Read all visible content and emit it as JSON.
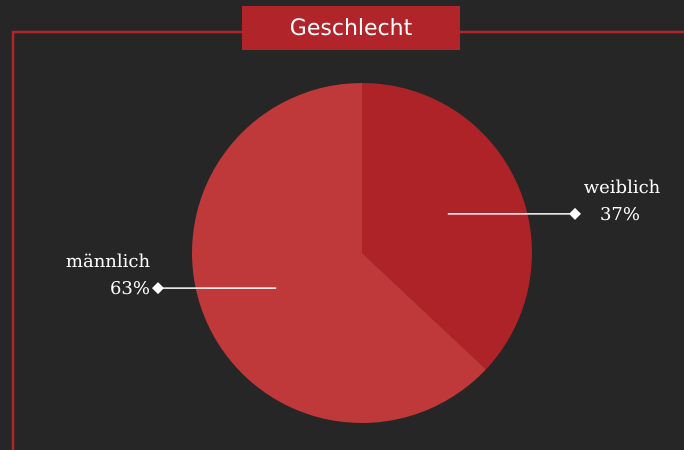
{
  "chart_data": {
    "type": "pie",
    "title": "Geschlecht",
    "categories": [
      "weiblich",
      "männlich"
    ],
    "values": [
      37,
      63
    ],
    "value_labels": [
      "37%",
      "63%"
    ],
    "colors": [
      "#ad2328",
      "#c0393a"
    ]
  }
}
